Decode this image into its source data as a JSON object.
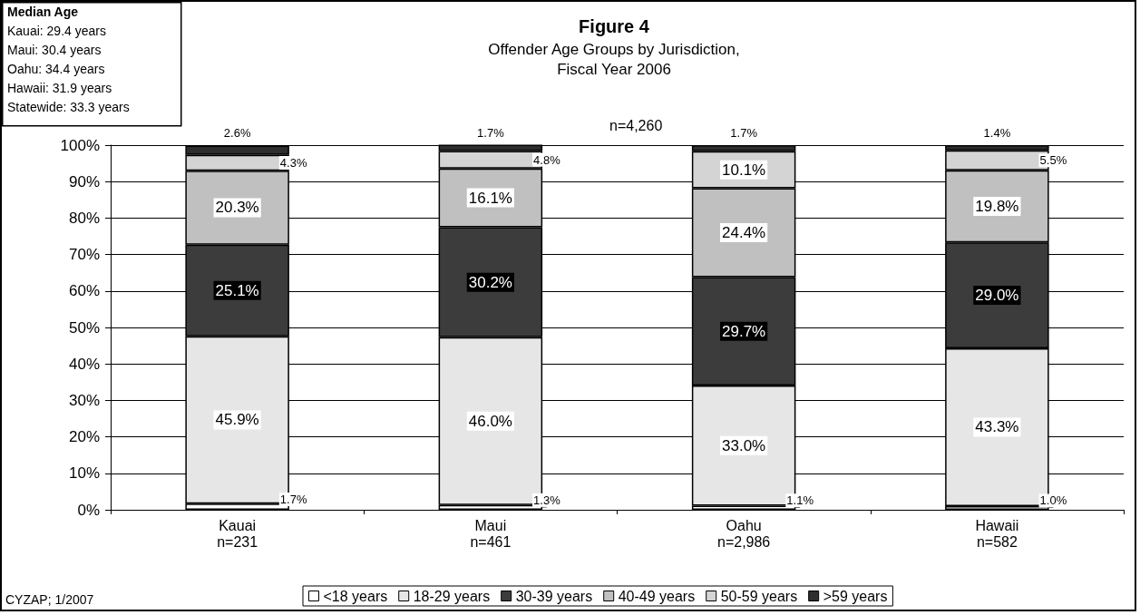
{
  "chart_data": {
    "type": "bar",
    "stacked": true,
    "title": "Figure 4",
    "subtitle": "Offender Age Groups by Jurisdiction,\nFiscal Year 2006",
    "categories": [
      "Kauai\nn=231",
      "Maui\nn=461",
      "Oahu\nn=2,986",
      "Hawaii\nn=582"
    ],
    "series": [
      {
        "name": "<18 years",
        "color": "#ffffff",
        "values": [
          1.7,
          1.3,
          1.1,
          1.0
        ],
        "value_labels": [
          "1.7%",
          "1.3%",
          "1.1%",
          "1.0%"
        ]
      },
      {
        "name": "18-29 years",
        "color": "#e6e6e6",
        "values": [
          45.9,
          46.0,
          33.0,
          43.3
        ],
        "value_labels": [
          "45.9%",
          "46.0%",
          "33.0%",
          "43.3%"
        ]
      },
      {
        "name": "30-39 years",
        "color": "#3c3c3c",
        "values": [
          25.1,
          30.2,
          29.7,
          29.0
        ],
        "value_labels": [
          "25.1%",
          "30.2%",
          "29.7%",
          "29.0%"
        ]
      },
      {
        "name": "40-49 years",
        "color": "#c0c0c0",
        "values": [
          20.3,
          16.1,
          24.4,
          19.8
        ],
        "value_labels": [
          "20.3%",
          "16.1%",
          "24.4%",
          "19.8%"
        ]
      },
      {
        "name": "50-59 years",
        "color": "#d4d4d4",
        "values": [
          4.3,
          4.8,
          10.1,
          5.5
        ],
        "value_labels": [
          "4.3%",
          "4.8%",
          "10.1%",
          "5.5%"
        ]
      },
      {
        "name": ">59 years",
        "color": "#2e2e2e",
        "values": [
          2.6,
          1.7,
          1.7,
          1.4
        ],
        "value_labels": [
          "2.6%",
          "1.7%",
          "1.7%",
          "1.4%"
        ]
      }
    ],
    "ylim": [
      0,
      100
    ],
    "yticks": [
      {
        "value": 0,
        "label": "0%"
      },
      {
        "value": 10,
        "label": "10%"
      },
      {
        "value": 20,
        "label": "20%"
      },
      {
        "value": 30,
        "label": "30%"
      },
      {
        "value": 40,
        "label": "40%"
      },
      {
        "value": 50,
        "label": "50%"
      },
      {
        "value": 60,
        "label": "60%"
      },
      {
        "value": 70,
        "label": "70%"
      },
      {
        "value": 80,
        "label": "80%"
      },
      {
        "value": 90,
        "label": "90%"
      },
      {
        "value": 100,
        "label": "100%"
      }
    ],
    "grid": "y",
    "legend": "bottom",
    "annotations": [
      "Median Age",
      "Kauai: 29.4 years",
      "Maui: 30.4 years",
      "Oahu: 34.4 years",
      "Hawaii: 31.9 years",
      "Statewide: 33.3 years",
      "n=4,260",
      "CYZAP; 1/2007"
    ]
  }
}
